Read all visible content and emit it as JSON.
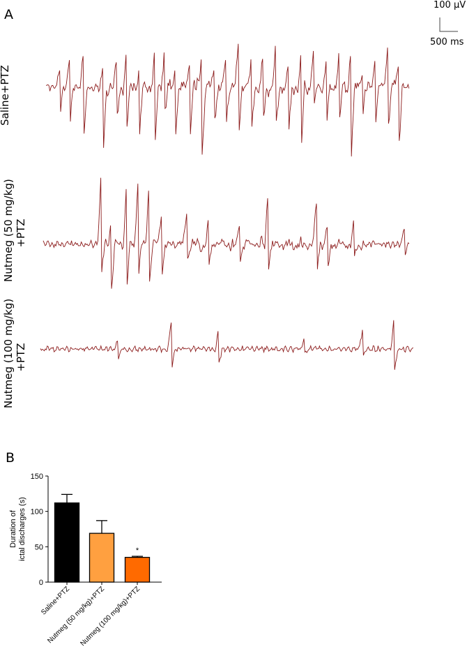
{
  "panel_a": {
    "label": "A",
    "scale_bar": {
      "voltage": "100 µV",
      "time": "500 ms"
    },
    "traces": [
      {
        "label_line1": "Saline+PTZ",
        "label_line2": "",
        "color": "#8b1a1a"
      },
      {
        "label_line1": "Nutmeg (50 mg/kg)",
        "label_line2": "+PTZ",
        "color": "#8b1a1a"
      },
      {
        "label_line1": "Nutmeg (100 mg/kg)",
        "label_line2": "+PTZ",
        "color": "#8b1a1a"
      }
    ]
  },
  "panel_b": {
    "label": "B"
  },
  "chart_data": {
    "type": "bar",
    "title": "",
    "ylabel_line1": "Duration of",
    "ylabel_line2": "ictal discharges (s)",
    "xlabel": "",
    "ylim": [
      0,
      150
    ],
    "yticks": [
      0,
      50,
      100,
      150
    ],
    "categories": [
      "Saline+PTZ",
      "Nutmeg (50 mg/kg)+PTZ",
      "Nutmeg (100 mg/kg)+PTZ"
    ],
    "values": [
      112,
      69,
      35
    ],
    "errors": [
      12,
      18,
      1.5
    ],
    "colors": [
      "#000000",
      "#ffa040",
      "#ff6a00"
    ],
    "annotations": [
      "",
      "",
      "*"
    ],
    "grid": false,
    "legend": "none"
  }
}
